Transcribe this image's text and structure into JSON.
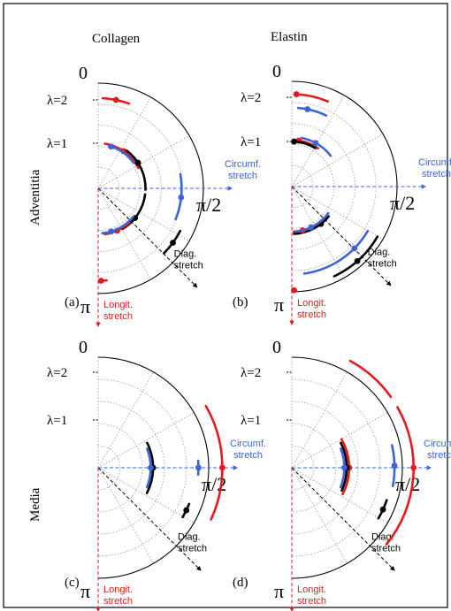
{
  "colors": {
    "red": "#e41a1c",
    "blue": "#3a64d8",
    "black": "#000000",
    "grid": "#9a9a9a"
  },
  "labels": {
    "col_titles": [
      "Collagen",
      "Elastin"
    ],
    "row_labels": [
      "Adventitia",
      "Media"
    ],
    "zero": "0",
    "pi": "π",
    "half_pi": "π/2",
    "lambda2": "λ=2",
    "lambda1": "λ=1",
    "circ_line1": "Circumf.",
    "circ_line2": "stretch",
    "diag_line1": "Diag.",
    "diag_line2": "stretch",
    "long_line1": "Longit.",
    "long_line2": "stretch"
  },
  "panels": [
    {
      "id": "a",
      "label": "(a)",
      "arcs": [
        {
          "color": "red",
          "r": 2.0,
          "a0": 0.05,
          "a1": 0.35,
          "marker": 0.2
        },
        {
          "color": "red",
          "r": 1.0,
          "a0": 0.15,
          "a1": 1.1,
          "marker": 0.6
        },
        {
          "color": "blue",
          "r": 0.97,
          "a0": 0.25,
          "a1": 0.95,
          "marker": 0.3
        },
        {
          "color": "black",
          "r": 1.05,
          "a0": 0.65,
          "a1": 1.6,
          "marker": 1.0
        },
        {
          "color": "black",
          "r": 1.05,
          "a0": 1.7,
          "a1": 2.6,
          "marker": 2.25
        },
        {
          "color": "red",
          "r": 1.03,
          "a0": 2.4,
          "a1": 3.0,
          "marker": 2.72
        },
        {
          "color": "blue",
          "r": 1.0,
          "a0": 2.25,
          "a1": 3.05,
          "marker": 2.85
        },
        {
          "color": "blue",
          "r": 1.85,
          "a0": 1.4,
          "a1": 1.95,
          "marker": 1.68
        },
        {
          "color": "black",
          "r": 2.05,
          "a0": 2.05,
          "a1": 2.35,
          "marker": 2.2
        },
        {
          "color": "red",
          "r": 2.05,
          "a0": 3.05,
          "a1": 3.13,
          "marker": 3.11
        }
      ]
    },
    {
      "id": "b",
      "label": "(b)",
      "arcs": [
        {
          "color": "red",
          "r": 2.05,
          "a0": 0.03,
          "a1": 0.4,
          "marker": 0.05
        },
        {
          "color": "blue",
          "r": 1.75,
          "a0": 0.08,
          "a1": 0.45,
          "marker": 0.2
        },
        {
          "color": "red",
          "r": 1.03,
          "a0": 0.05,
          "a1": 0.6,
          "marker": 0.15
        },
        {
          "color": "black",
          "r": 1.0,
          "a0": 0.03,
          "a1": 0.55,
          "marker": 0.05
        },
        {
          "color": "blue",
          "r": 1.1,
          "a0": 0.2,
          "a1": 0.9,
          "marker": 0.5
        },
        {
          "color": "black",
          "r": 1.05,
          "a0": 2.25,
          "a1": 3.1,
          "marker": 2.48
        },
        {
          "color": "red",
          "r": 1.0,
          "a0": 2.4,
          "a1": 3.1,
          "marker": 2.9
        },
        {
          "color": "blue",
          "r": 1.0,
          "a0": 2.2,
          "a1": 3.05,
          "marker": 2.7
        },
        {
          "color": "blue",
          "r": 1.95,
          "a0": 2.1,
          "a1": 3.0,
          "marker": 2.35
        },
        {
          "color": "black",
          "r": 2.2,
          "a0": 2.1,
          "a1": 2.7,
          "marker": 2.42
        },
        {
          "color": "red",
          "r": 2.3,
          "a0": 3.1,
          "a1": 3.14,
          "marker": 3.12
        }
      ]
    },
    {
      "id": "c",
      "label": "(c)",
      "arcs": [
        {
          "color": "black",
          "r": 1.15,
          "a0": 1.1,
          "a1": 2.05,
          "marker": 1.57
        },
        {
          "color": "blue",
          "r": 1.1,
          "a0": 1.2,
          "a1": 1.95,
          "marker": 1.57
        },
        {
          "color": "blue",
          "r": 2.1,
          "a0": 1.5,
          "a1": 1.64,
          "marker": 1.57
        },
        {
          "color": "black",
          "r": 2.05,
          "a0": 1.95,
          "a1": 2.1,
          "marker": 2.02
        },
        {
          "color": "red",
          "r": 2.6,
          "a0": 1.05,
          "a1": 2.0,
          "marker": 1.57
        }
      ]
    },
    {
      "id": "d",
      "label": "(d)",
      "arcs": [
        {
          "color": "red",
          "r": 1.2,
          "a0": 1.05,
          "a1": 2.05,
          "marker": 1.57
        },
        {
          "color": "black",
          "r": 1.15,
          "a0": 1.1,
          "a1": 2.0,
          "marker": 1.57
        },
        {
          "color": "blue",
          "r": 1.1,
          "a0": 1.2,
          "a1": 1.95,
          "marker": 1.57
        },
        {
          "color": "blue",
          "r": 2.15,
          "a0": 1.35,
          "a1": 1.75,
          "marker": 1.55
        },
        {
          "color": "black",
          "r": 2.1,
          "a0": 1.9,
          "a1": 2.1,
          "marker": 2.0
        },
        {
          "color": "red",
          "r": 2.55,
          "a0": 1.05,
          "a1": 2.25,
          "marker": 1.57
        },
        {
          "color": "red",
          "r": 2.55,
          "a0": 0.5,
          "a1": 0.95,
          "marker": null
        }
      ]
    }
  ]
}
